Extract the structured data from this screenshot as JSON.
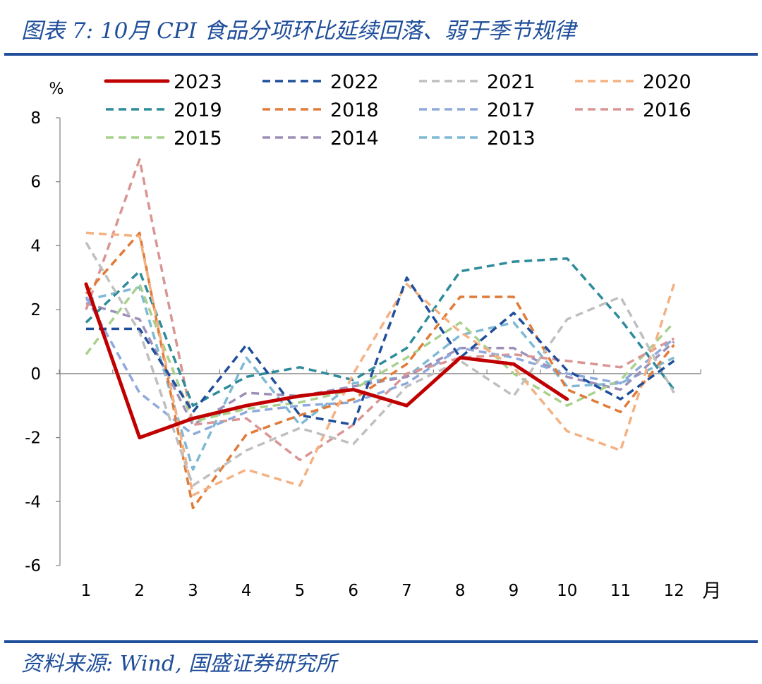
{
  "header": {
    "title": "图表 7:  10月 CPI 食品分项环比延续回落、弱于季节规律"
  },
  "footer": {
    "source": "资料来源:  Wind,  国盛证券研究所"
  },
  "chart_data": {
    "type": "line",
    "title": "",
    "ylabel": "%",
    "xlabel": "月",
    "ylim": [
      -6,
      8
    ],
    "yticks": [
      -6,
      -4,
      -2,
      0,
      2,
      4,
      6,
      8
    ],
    "ytick_labels": [
      "-6",
      "-4",
      "-2",
      "0",
      "2",
      "4",
      "6",
      "8"
    ],
    "categories": [
      "1",
      "2",
      "3",
      "4",
      "5",
      "6",
      "7",
      "8",
      "9",
      "10",
      "11",
      "12"
    ],
    "grid": false,
    "legend_position": "top",
    "series": [
      {
        "name": "2023",
        "color": "#c00000",
        "style": "solid",
        "values": [
          2.8,
          -2.0,
          -1.4,
          -1.0,
          -0.7,
          -0.5,
          -1.0,
          0.5,
          0.3,
          -0.8,
          null,
          null
        ]
      },
      {
        "name": "2022",
        "color": "#1f4e9a",
        "style": "dashed",
        "values": [
          1.4,
          1.4,
          -1.2,
          0.9,
          -1.3,
          -1.6,
          3.0,
          0.5,
          1.9,
          0.1,
          -0.8,
          0.4
        ]
      },
      {
        "name": "2021",
        "color": "#bfbfbf",
        "style": "dashed",
        "values": [
          4.1,
          1.3,
          -3.5,
          -2.4,
          -1.7,
          -2.2,
          -0.4,
          0.4,
          -0.7,
          1.7,
          2.4,
          -0.6
        ]
      },
      {
        "name": "2020",
        "color": "#f4b183",
        "style": "dashed",
        "values": [
          4.4,
          4.3,
          -3.8,
          -3.0,
          -3.5,
          0.0,
          2.8,
          1.3,
          0.2,
          -1.8,
          -2.4,
          2.8
        ]
      },
      {
        "name": "2019",
        "color": "#2e8b9a",
        "style": "dashed",
        "values": [
          1.6,
          3.2,
          -1.0,
          -0.1,
          0.2,
          -0.2,
          0.8,
          3.2,
          3.5,
          3.6,
          1.7,
          -0.5
        ]
      },
      {
        "name": "2018",
        "color": "#e07b39",
        "style": "dashed",
        "values": [
          2.5,
          4.4,
          -4.2,
          -1.9,
          -1.3,
          -0.8,
          0.3,
          2.4,
          2.4,
          -0.5,
          -1.2,
          0.9
        ]
      },
      {
        "name": "2017",
        "color": "#8ea9db",
        "style": "dashed",
        "values": [
          2.4,
          -0.6,
          -1.9,
          -1.2,
          -1.0,
          -0.9,
          -0.3,
          0.8,
          0.5,
          0.0,
          -0.3,
          1.1
        ]
      },
      {
        "name": "2016",
        "color": "#d99594",
        "style": "dashed",
        "values": [
          2.0,
          6.7,
          -1.6,
          -1.4,
          -2.7,
          -1.6,
          0.0,
          0.5,
          0.6,
          0.4,
          0.2,
          1.1
        ]
      },
      {
        "name": "2015",
        "color": "#a9d18e",
        "style": "dashed",
        "values": [
          0.6,
          2.8,
          -1.5,
          -1.1,
          -0.9,
          -0.5,
          0.5,
          1.6,
          0.0,
          -1.0,
          -0.2,
          1.6
        ]
      },
      {
        "name": "2014",
        "color": "#9e8fb8",
        "style": "dashed",
        "values": [
          2.2,
          1.7,
          -1.6,
          -0.6,
          -0.7,
          -0.4,
          -0.1,
          0.8,
          0.8,
          -0.1,
          -0.5,
          1.0
        ]
      },
      {
        "name": "2013",
        "color": "#7fb9d4",
        "style": "dashed",
        "values": [
          2.3,
          2.7,
          -3.0,
          0.5,
          -1.6,
          -0.3,
          -0.1,
          1.2,
          1.6,
          -0.4,
          -0.3,
          0.5
        ]
      }
    ]
  }
}
